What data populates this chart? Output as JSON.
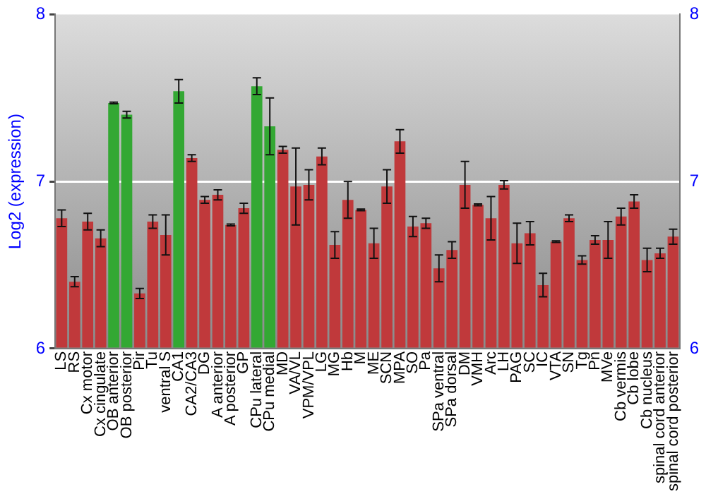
{
  "chart_data": {
    "type": "bar",
    "ylabel": "Log2 (expression)",
    "categories": [
      "LS",
      "RS",
      "Cx motor",
      "Cx cingulate",
      "OB anterior",
      "OB posterior",
      "Pir",
      "Tu",
      "ventral S",
      "CA1",
      "CA2/CA3",
      "DG",
      "A anterior",
      "A posterior",
      "GP",
      "CPu lateral",
      "CPu medial",
      "MD",
      "VA/VL",
      "VPM/VPL",
      "LG",
      "MG",
      "Hb",
      "M",
      "ME",
      "SCN",
      "MPA",
      "SO",
      "Pa",
      "SPa ventral",
      "SPa dorsal",
      "DM",
      "VMH",
      "Arc",
      "LH",
      "PAG",
      "SC",
      "IC",
      "VTA",
      "SN",
      "Tg",
      "Pn",
      "MVe",
      "Cb vermis",
      "Cb lobe",
      "Cb nucleus",
      "spinal cord anterior",
      "spinal cord posterior"
    ],
    "values": [
      6.78,
      6.4,
      6.76,
      6.66,
      7.47,
      7.4,
      6.33,
      6.76,
      6.68,
      7.54,
      7.14,
      6.89,
      6.92,
      6.74,
      6.84,
      7.57,
      7.33,
      7.19,
      6.97,
      6.98,
      7.15,
      6.62,
      6.89,
      6.83,
      6.63,
      6.97,
      7.24,
      6.73,
      6.75,
      6.48,
      6.59,
      6.98,
      6.86,
      6.78,
      6.98,
      6.63,
      6.69,
      6.38,
      6.64,
      6.78,
      6.53,
      6.65,
      6.65,
      6.79,
      6.88,
      6.53,
      6.57,
      6.67
    ],
    "errors": [
      0.05,
      0.03,
      0.05,
      0.05,
      0.005,
      0.02,
      0.03,
      0.04,
      0.12,
      0.07,
      0.02,
      0.02,
      0.03,
      0.005,
      0.03,
      0.05,
      0.17,
      0.02,
      0.23,
      0.09,
      0.05,
      0.08,
      0.11,
      0.005,
      0.09,
      0.1,
      0.07,
      0.06,
      0.03,
      0.08,
      0.05,
      0.14,
      0.005,
      0.13,
      0.025,
      0.12,
      0.07,
      0.07,
      0.005,
      0.02,
      0.025,
      0.025,
      0.11,
      0.05,
      0.04,
      0.07,
      0.03,
      0.045
    ],
    "colors": [
      "#c0393b",
      "#c0393b",
      "#c0393b",
      "#c0393b",
      "#33a833",
      "#33a833",
      "#c0393b",
      "#c0393b",
      "#c0393b",
      "#33a833",
      "#c0393b",
      "#c0393b",
      "#c0393b",
      "#c0393b",
      "#c0393b",
      "#33a833",
      "#33a833",
      "#c0393b",
      "#c0393b",
      "#c0393b",
      "#c0393b",
      "#c0393b",
      "#c0393b",
      "#c0393b",
      "#c0393b",
      "#c0393b",
      "#c0393b",
      "#c0393b",
      "#c0393b",
      "#c0393b",
      "#c0393b",
      "#c0393b",
      "#c0393b",
      "#c0393b",
      "#c0393b",
      "#c0393b",
      "#c0393b",
      "#c0393b",
      "#c0393b",
      "#c0393b",
      "#c0393b",
      "#c0393b",
      "#c0393b",
      "#c0393b",
      "#c0393b",
      "#c0393b",
      "#c0393b",
      "#c0393b"
    ],
    "ylim": [
      6,
      8
    ],
    "yticks": [
      6,
      7,
      8
    ],
    "y2lim": [
      6,
      8
    ],
    "y2ticks": [
      6,
      7,
      8
    ],
    "grid": "y",
    "legend": false
  }
}
